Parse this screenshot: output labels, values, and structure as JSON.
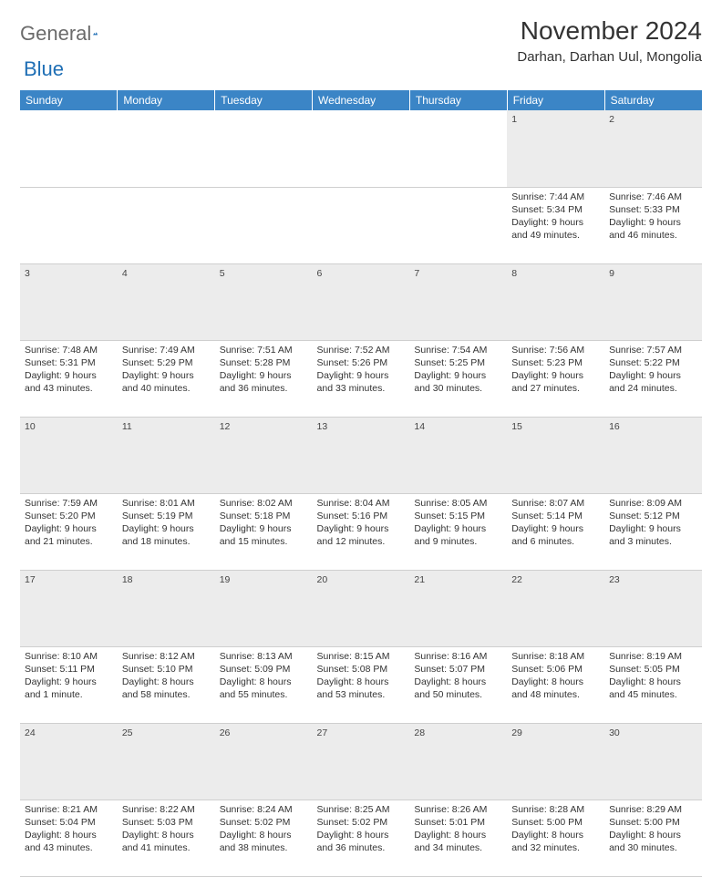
{
  "brand": {
    "left": "General",
    "right": "Blue"
  },
  "title": "November 2024",
  "location": "Darhan, Darhan Uul, Mongolia",
  "colors": {
    "header_bg": "#3b85c6",
    "header_fg": "#ffffff",
    "daynum_bg": "#ececec",
    "border": "#cfcfcf",
    "logo_gray": "#6b6b6b",
    "logo_blue": "#1f6fb5"
  },
  "weekdays": [
    "Sunday",
    "Monday",
    "Tuesday",
    "Wednesday",
    "Thursday",
    "Friday",
    "Saturday"
  ],
  "weeks": [
    {
      "nums": [
        "",
        "",
        "",
        "",
        "",
        "1",
        "2"
      ],
      "cells": [
        null,
        null,
        null,
        null,
        null,
        {
          "sr": "Sunrise: 7:44 AM",
          "ss": "Sunset: 5:34 PM",
          "d1": "Daylight: 9 hours",
          "d2": "and 49 minutes."
        },
        {
          "sr": "Sunrise: 7:46 AM",
          "ss": "Sunset: 5:33 PM",
          "d1": "Daylight: 9 hours",
          "d2": "and 46 minutes."
        }
      ]
    },
    {
      "nums": [
        "3",
        "4",
        "5",
        "6",
        "7",
        "8",
        "9"
      ],
      "cells": [
        {
          "sr": "Sunrise: 7:48 AM",
          "ss": "Sunset: 5:31 PM",
          "d1": "Daylight: 9 hours",
          "d2": "and 43 minutes."
        },
        {
          "sr": "Sunrise: 7:49 AM",
          "ss": "Sunset: 5:29 PM",
          "d1": "Daylight: 9 hours",
          "d2": "and 40 minutes."
        },
        {
          "sr": "Sunrise: 7:51 AM",
          "ss": "Sunset: 5:28 PM",
          "d1": "Daylight: 9 hours",
          "d2": "and 36 minutes."
        },
        {
          "sr": "Sunrise: 7:52 AM",
          "ss": "Sunset: 5:26 PM",
          "d1": "Daylight: 9 hours",
          "d2": "and 33 minutes."
        },
        {
          "sr": "Sunrise: 7:54 AM",
          "ss": "Sunset: 5:25 PM",
          "d1": "Daylight: 9 hours",
          "d2": "and 30 minutes."
        },
        {
          "sr": "Sunrise: 7:56 AM",
          "ss": "Sunset: 5:23 PM",
          "d1": "Daylight: 9 hours",
          "d2": "and 27 minutes."
        },
        {
          "sr": "Sunrise: 7:57 AM",
          "ss": "Sunset: 5:22 PM",
          "d1": "Daylight: 9 hours",
          "d2": "and 24 minutes."
        }
      ]
    },
    {
      "nums": [
        "10",
        "11",
        "12",
        "13",
        "14",
        "15",
        "16"
      ],
      "cells": [
        {
          "sr": "Sunrise: 7:59 AM",
          "ss": "Sunset: 5:20 PM",
          "d1": "Daylight: 9 hours",
          "d2": "and 21 minutes."
        },
        {
          "sr": "Sunrise: 8:01 AM",
          "ss": "Sunset: 5:19 PM",
          "d1": "Daylight: 9 hours",
          "d2": "and 18 minutes."
        },
        {
          "sr": "Sunrise: 8:02 AM",
          "ss": "Sunset: 5:18 PM",
          "d1": "Daylight: 9 hours",
          "d2": "and 15 minutes."
        },
        {
          "sr": "Sunrise: 8:04 AM",
          "ss": "Sunset: 5:16 PM",
          "d1": "Daylight: 9 hours",
          "d2": "and 12 minutes."
        },
        {
          "sr": "Sunrise: 8:05 AM",
          "ss": "Sunset: 5:15 PM",
          "d1": "Daylight: 9 hours",
          "d2": "and 9 minutes."
        },
        {
          "sr": "Sunrise: 8:07 AM",
          "ss": "Sunset: 5:14 PM",
          "d1": "Daylight: 9 hours",
          "d2": "and 6 minutes."
        },
        {
          "sr": "Sunrise: 8:09 AM",
          "ss": "Sunset: 5:12 PM",
          "d1": "Daylight: 9 hours",
          "d2": "and 3 minutes."
        }
      ]
    },
    {
      "nums": [
        "17",
        "18",
        "19",
        "20",
        "21",
        "22",
        "23"
      ],
      "cells": [
        {
          "sr": "Sunrise: 8:10 AM",
          "ss": "Sunset: 5:11 PM",
          "d1": "Daylight: 9 hours",
          "d2": "and 1 minute."
        },
        {
          "sr": "Sunrise: 8:12 AM",
          "ss": "Sunset: 5:10 PM",
          "d1": "Daylight: 8 hours",
          "d2": "and 58 minutes."
        },
        {
          "sr": "Sunrise: 8:13 AM",
          "ss": "Sunset: 5:09 PM",
          "d1": "Daylight: 8 hours",
          "d2": "and 55 minutes."
        },
        {
          "sr": "Sunrise: 8:15 AM",
          "ss": "Sunset: 5:08 PM",
          "d1": "Daylight: 8 hours",
          "d2": "and 53 minutes."
        },
        {
          "sr": "Sunrise: 8:16 AM",
          "ss": "Sunset: 5:07 PM",
          "d1": "Daylight: 8 hours",
          "d2": "and 50 minutes."
        },
        {
          "sr": "Sunrise: 8:18 AM",
          "ss": "Sunset: 5:06 PM",
          "d1": "Daylight: 8 hours",
          "d2": "and 48 minutes."
        },
        {
          "sr": "Sunrise: 8:19 AM",
          "ss": "Sunset: 5:05 PM",
          "d1": "Daylight: 8 hours",
          "d2": "and 45 minutes."
        }
      ]
    },
    {
      "nums": [
        "24",
        "25",
        "26",
        "27",
        "28",
        "29",
        "30"
      ],
      "cells": [
        {
          "sr": "Sunrise: 8:21 AM",
          "ss": "Sunset: 5:04 PM",
          "d1": "Daylight: 8 hours",
          "d2": "and 43 minutes."
        },
        {
          "sr": "Sunrise: 8:22 AM",
          "ss": "Sunset: 5:03 PM",
          "d1": "Daylight: 8 hours",
          "d2": "and 41 minutes."
        },
        {
          "sr": "Sunrise: 8:24 AM",
          "ss": "Sunset: 5:02 PM",
          "d1": "Daylight: 8 hours",
          "d2": "and 38 minutes."
        },
        {
          "sr": "Sunrise: 8:25 AM",
          "ss": "Sunset: 5:02 PM",
          "d1": "Daylight: 8 hours",
          "d2": "and 36 minutes."
        },
        {
          "sr": "Sunrise: 8:26 AM",
          "ss": "Sunset: 5:01 PM",
          "d1": "Daylight: 8 hours",
          "d2": "and 34 minutes."
        },
        {
          "sr": "Sunrise: 8:28 AM",
          "ss": "Sunset: 5:00 PM",
          "d1": "Daylight: 8 hours",
          "d2": "and 32 minutes."
        },
        {
          "sr": "Sunrise: 8:29 AM",
          "ss": "Sunset: 5:00 PM",
          "d1": "Daylight: 8 hours",
          "d2": "and 30 minutes."
        }
      ]
    }
  ]
}
